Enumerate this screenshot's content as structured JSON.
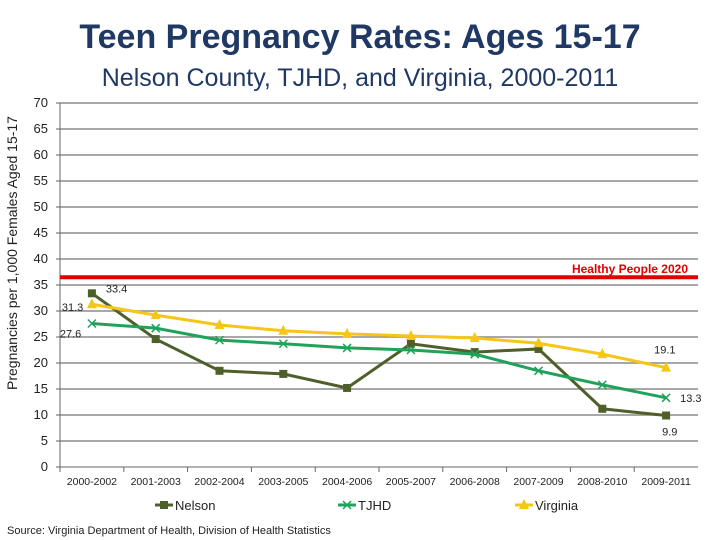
{
  "chart_data": {
    "type": "line",
    "title": "Teen Pregnancy Rates: Ages 15-17",
    "subtitle": "Nelson County, TJHD, and Virginia, 2000-2011",
    "ylabel": "Pregnancies per 1,000 Females Aged 15-17",
    "xlabel": "",
    "ylim": [
      0,
      70
    ],
    "yticks": [
      0,
      5,
      10,
      15,
      20,
      25,
      30,
      35,
      40,
      45,
      50,
      55,
      60,
      65,
      70
    ],
    "grid": true,
    "legend": "bottom",
    "categories": [
      "2000-2002",
      "2001-2003",
      "2002-2004",
      "2003-2005",
      "2004-2006",
      "2005-2007",
      "2006-2008",
      "2007-2009",
      "2008-2010",
      "2009-2011"
    ],
    "series": [
      {
        "name": "Nelson",
        "color": "#4f5f2a",
        "marker": "square",
        "values": [
          33.4,
          24.6,
          18.5,
          17.9,
          15.2,
          23.7,
          22.1,
          22.7,
          11.2,
          9.9
        ],
        "labels": {
          "0": "33.4",
          "9": "9.9"
        }
      },
      {
        "name": "TJHD",
        "color": "#1fa35a",
        "marker": "x",
        "values": [
          27.6,
          26.7,
          24.4,
          23.7,
          22.9,
          22.5,
          21.7,
          18.5,
          15.8,
          13.3
        ],
        "labels": {
          "0": "27.6",
          "9": "13.3"
        }
      },
      {
        "name": "Virginia",
        "color": "#f5c518",
        "marker": "triangle",
        "values": [
          31.3,
          29.2,
          27.3,
          26.2,
          25.6,
          25.2,
          24.8,
          23.8,
          21.7,
          19.1
        ],
        "labels": {
          "0": "31.3",
          "9": "19.1"
        }
      }
    ],
    "reference_line": {
      "label": "Healthy People 2020",
      "value": 36.5,
      "color": "#e00000"
    }
  },
  "source": "Source: Virginia Department of Health, Division of Health Statistics"
}
